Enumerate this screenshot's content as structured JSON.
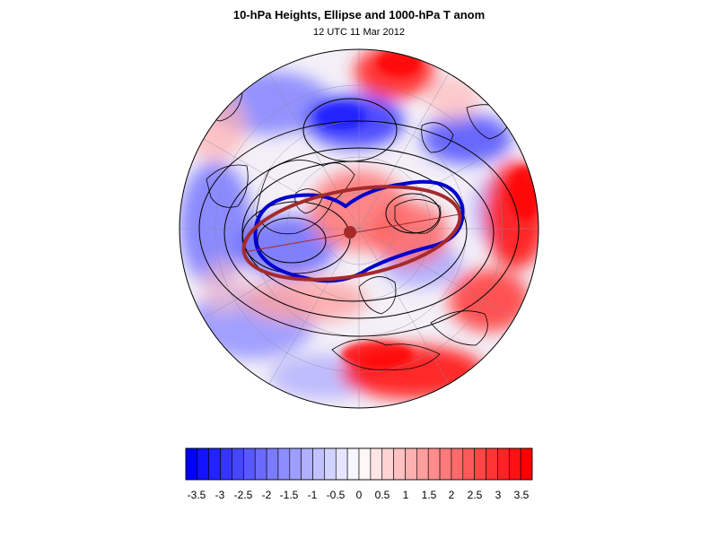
{
  "title": "10-hPa Heights, Ellipse and 1000-hPa T anom",
  "subtitle": "12 UTC 11 Mar 2012",
  "colorbar": {
    "min": -3.75,
    "max": 3.75,
    "step": 0.25,
    "neg_color": "#0000ff",
    "pos_color": "#ff0000",
    "labels": [
      "-3.5",
      "-3",
      "-2.5",
      "-2",
      "-1.5",
      "-1",
      "-0.5",
      "0",
      "0.5",
      "1",
      "1.5",
      "2",
      "2.5",
      "3",
      "3.5"
    ]
  },
  "colors": {
    "height_contour": "#000000",
    "height_contour_bold": "#0000cc",
    "ellipse": "#a52a2a",
    "gridline": "#8a8aa0"
  }
}
